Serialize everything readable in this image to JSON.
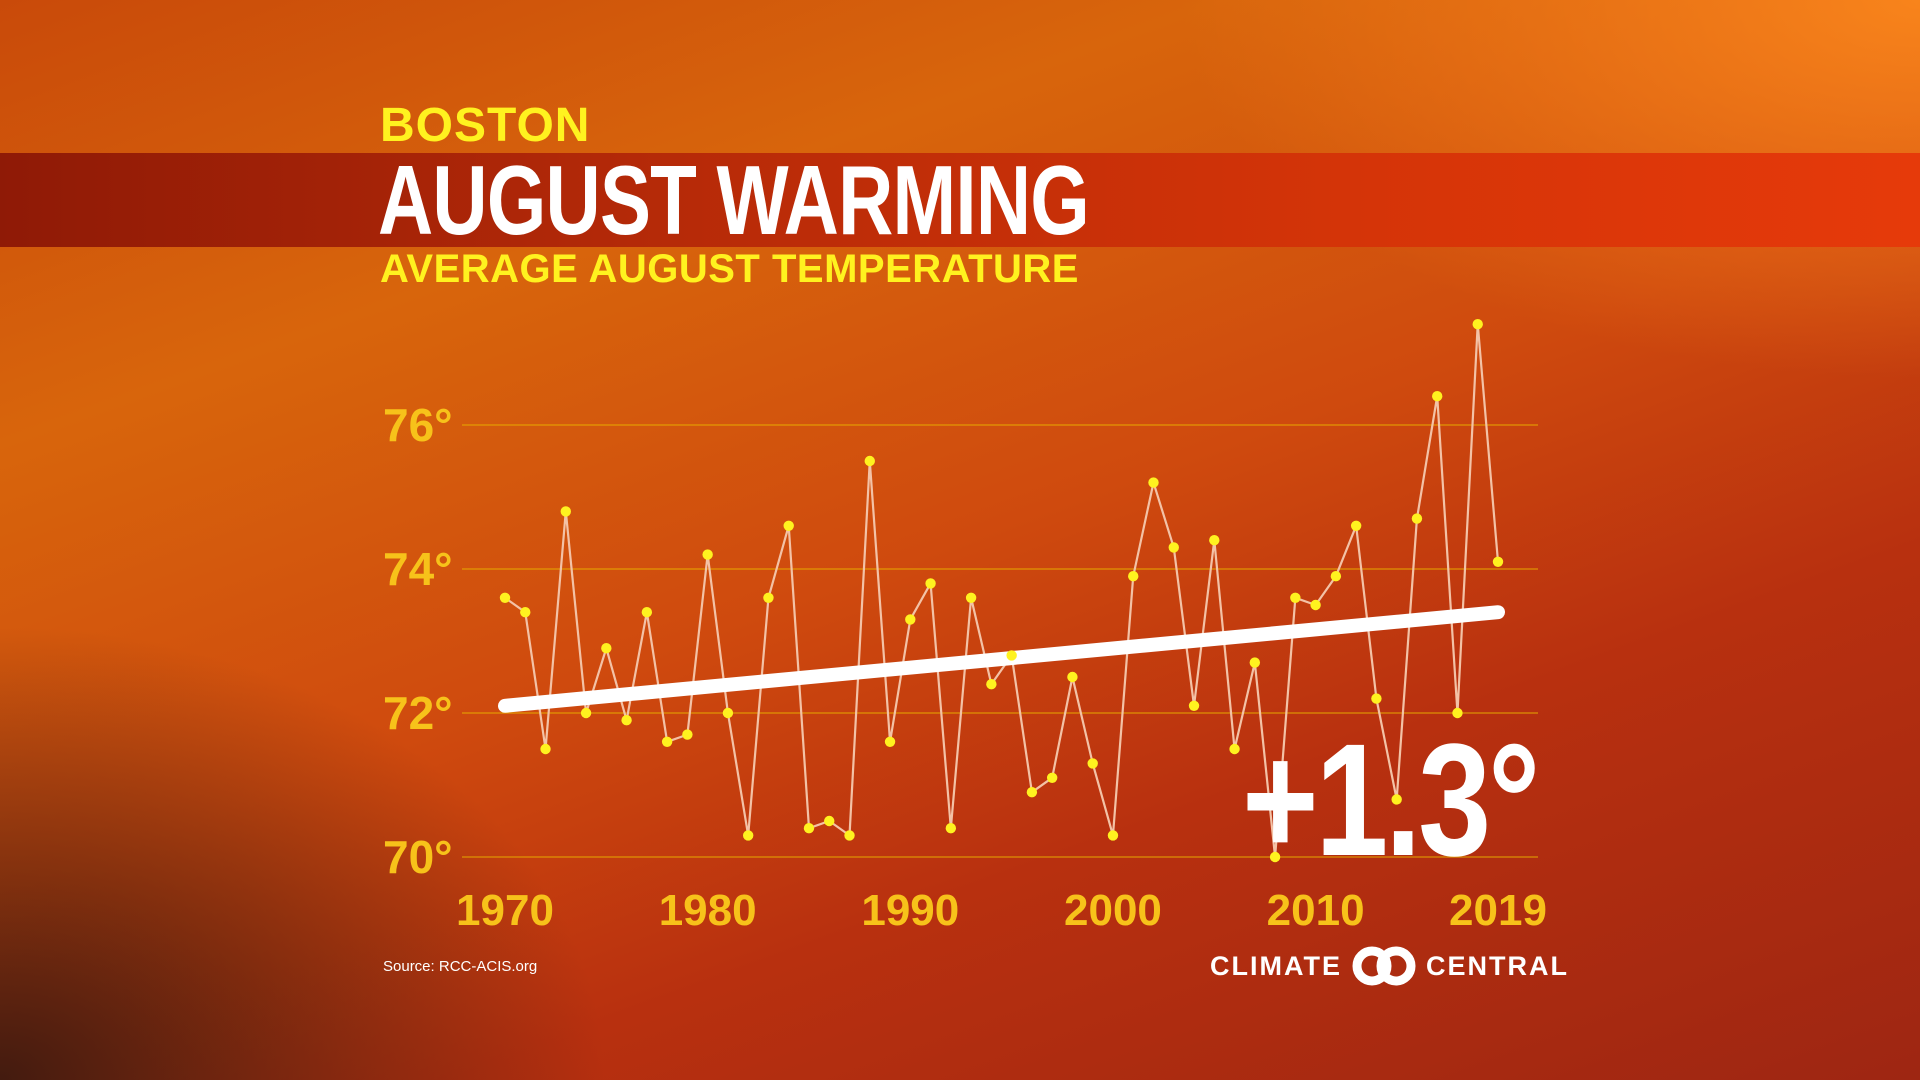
{
  "header": {
    "city": "BOSTON",
    "title": "AUGUST WARMING",
    "subtitle": "AVERAGE AUGUST TEMPERATURE"
  },
  "change_label": "+1.3°",
  "source": "Source: RCC-ACIS.org",
  "brand": {
    "left": "CLIMATE",
    "right": "CENTRAL",
    "logo_icon": "interlocking-circles-icon"
  },
  "colors": {
    "line": "#f3c2a6",
    "point": "#fff21f",
    "trend": "#ffffff",
    "grid": "#e8b000",
    "labels": "#f7c21a"
  },
  "chart_data": {
    "type": "line",
    "title": "AVERAGE AUGUST TEMPERATURE",
    "xlabel": "",
    "ylabel": "",
    "x": [
      1970,
      1971,
      1972,
      1973,
      1974,
      1975,
      1976,
      1977,
      1978,
      1979,
      1980,
      1981,
      1982,
      1983,
      1984,
      1985,
      1986,
      1987,
      1988,
      1989,
      1990,
      1991,
      1992,
      1993,
      1994,
      1995,
      1996,
      1997,
      1998,
      1999,
      2000,
      2001,
      2002,
      2003,
      2004,
      2005,
      2006,
      2007,
      2008,
      2009,
      2010,
      2011,
      2012,
      2013,
      2014,
      2015,
      2016,
      2017,
      2018,
      2019
    ],
    "series": [
      {
        "values": [
          73.6,
          73.4,
          71.5,
          74.8,
          72.0,
          72.9,
          71.9,
          73.4,
          71.6,
          71.7,
          74.2,
          72.0,
          70.3,
          73.6,
          74.6,
          70.4,
          70.5,
          70.3,
          75.5,
          71.6,
          73.3,
          73.8,
          70.4,
          73.6,
          72.4,
          72.8,
          70.9,
          71.1,
          72.5,
          71.3,
          70.3,
          73.9,
          75.2,
          74.3,
          72.1,
          74.4,
          71.5,
          72.7,
          70.0,
          73.6,
          73.5,
          73.9,
          74.6,
          72.2,
          70.8,
          74.7,
          76.4,
          72.0,
          77.4,
          74.1
        ]
      }
    ],
    "trend": {
      "start": [
        1970,
        72.1
      ],
      "end": [
        2019,
        73.4
      ],
      "change": 1.3
    },
    "ylim": [
      69.5,
      78
    ],
    "yticks": [
      70,
      72,
      74,
      76
    ],
    "ytick_labels": [
      "70°",
      "72°",
      "74°",
      "76°"
    ],
    "xticks": [
      1970,
      1980,
      1990,
      2000,
      2010,
      2019
    ],
    "xtick_labels": [
      "1970",
      "1980",
      "1990",
      "2000",
      "2010",
      "2019"
    ],
    "grid": true,
    "legend": "none"
  }
}
